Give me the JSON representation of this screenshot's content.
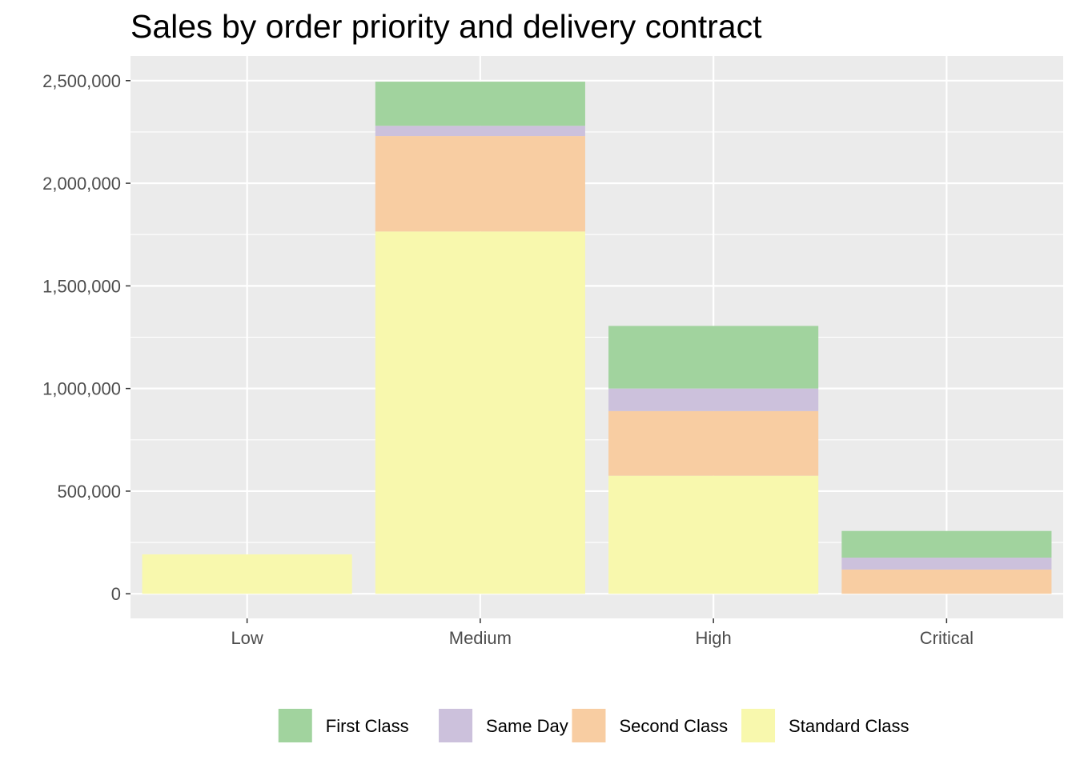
{
  "chart_data": {
    "type": "bar",
    "stacked": true,
    "title": "Sales by order priority and delivery contract",
    "xlabel": "",
    "ylabel": "",
    "categories": [
      "Low",
      "Medium",
      "High",
      "Critical"
    ],
    "ylim": [
      -120000,
      2620000
    ],
    "yticks": [
      0,
      500000,
      1000000,
      1500000,
      2000000,
      2500000
    ],
    "ytick_labels": [
      "0",
      "500,000",
      "1,000,000",
      "1,500,000",
      "2,000,000",
      "2,500,000"
    ],
    "grid": true,
    "legend_position": "bottom",
    "series": [
      {
        "name": "Standard Class",
        "color": "#f8f8ad",
        "values": [
          192000,
          1765000,
          575000,
          0
        ]
      },
      {
        "name": "Second Class",
        "color": "#f8cda2",
        "values": [
          0,
          465000,
          315000,
          118000
        ]
      },
      {
        "name": "Same Day",
        "color": "#ccc1dc",
        "values": [
          0,
          50000,
          110000,
          58000
        ]
      },
      {
        "name": "First Class",
        "color": "#a1d39e",
        "values": [
          0,
          215000,
          305000,
          130000
        ]
      }
    ],
    "legend_order": [
      "First Class",
      "Same Day",
      "Second Class",
      "Standard Class"
    ]
  }
}
